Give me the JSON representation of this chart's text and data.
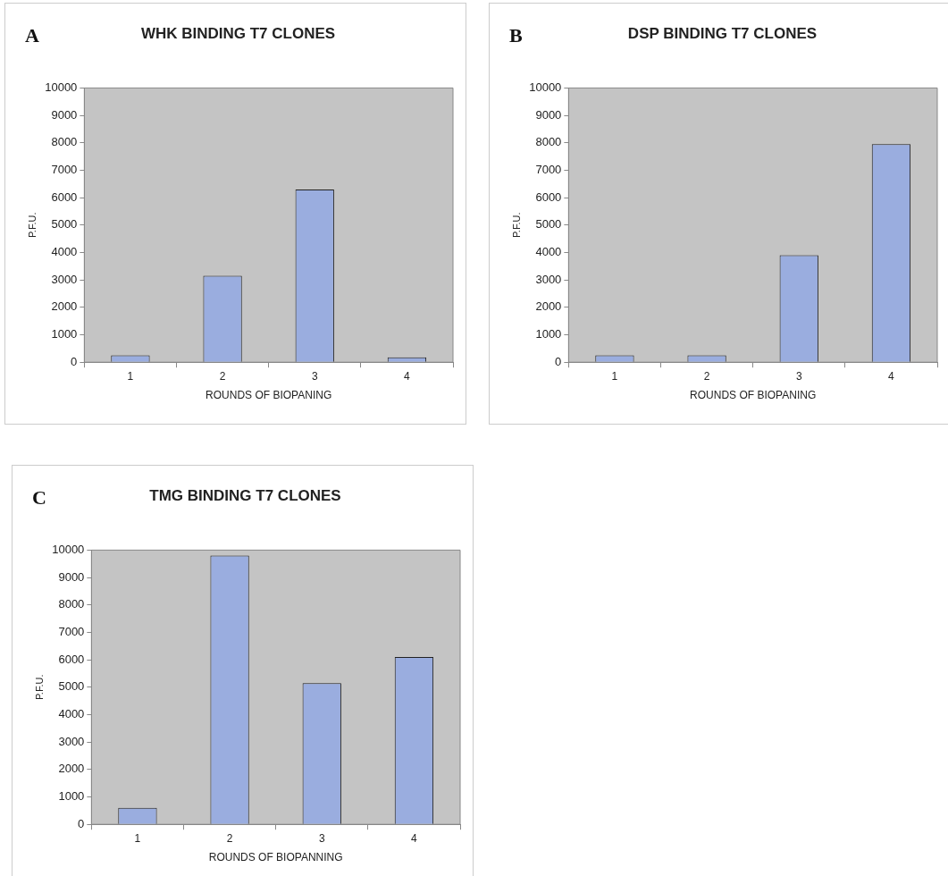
{
  "chart_data": [
    {
      "type": "bar",
      "title": "WHK BINDING T7 CLONES",
      "annotations": [
        "A"
      ],
      "xlabel": "ROUNDS OF BIOPANING",
      "ylabel": "P.F.U.",
      "categories": [
        "1",
        "2",
        "3",
        "4"
      ],
      "values": [
        250,
        3150,
        6300,
        180
      ],
      "color": "#9aaddf",
      "ylim": [
        0,
        10000
      ],
      "yticks": [
        0,
        1000,
        2000,
        3000,
        4000,
        5000,
        6000,
        7000,
        8000,
        9000,
        10000
      ],
      "grid": false,
      "legend": false
    },
    {
      "type": "bar",
      "title": "DSP BINDING T7 CLONES",
      "annotations": [
        "B"
      ],
      "xlabel": "ROUNDS OF BIOPANING",
      "ylabel": "P.F.U.",
      "categories": [
        "1",
        "2",
        "3",
        "4"
      ],
      "values": [
        250,
        250,
        3900,
        7950
      ],
      "color": "#9aaddf",
      "ylim": [
        0,
        10000
      ],
      "yticks": [
        0,
        1000,
        2000,
        3000,
        4000,
        5000,
        6000,
        7000,
        8000,
        9000,
        10000
      ],
      "grid": false,
      "legend": false
    },
    {
      "type": "bar",
      "title": "TMG BINDING T7 CLONES",
      "annotations": [
        "C"
      ],
      "xlabel": "ROUNDS OF BIOPANNING",
      "ylabel": "P.F.U.",
      "categories": [
        "1",
        "2",
        "3",
        "4"
      ],
      "values": [
        600,
        9800,
        5150,
        6100
      ],
      "color": "#9aaddf",
      "ylim": [
        0,
        10000
      ],
      "yticks": [
        0,
        1000,
        2000,
        3000,
        4000,
        5000,
        6000,
        7000,
        8000,
        9000,
        10000
      ],
      "grid": false,
      "legend": false
    }
  ]
}
